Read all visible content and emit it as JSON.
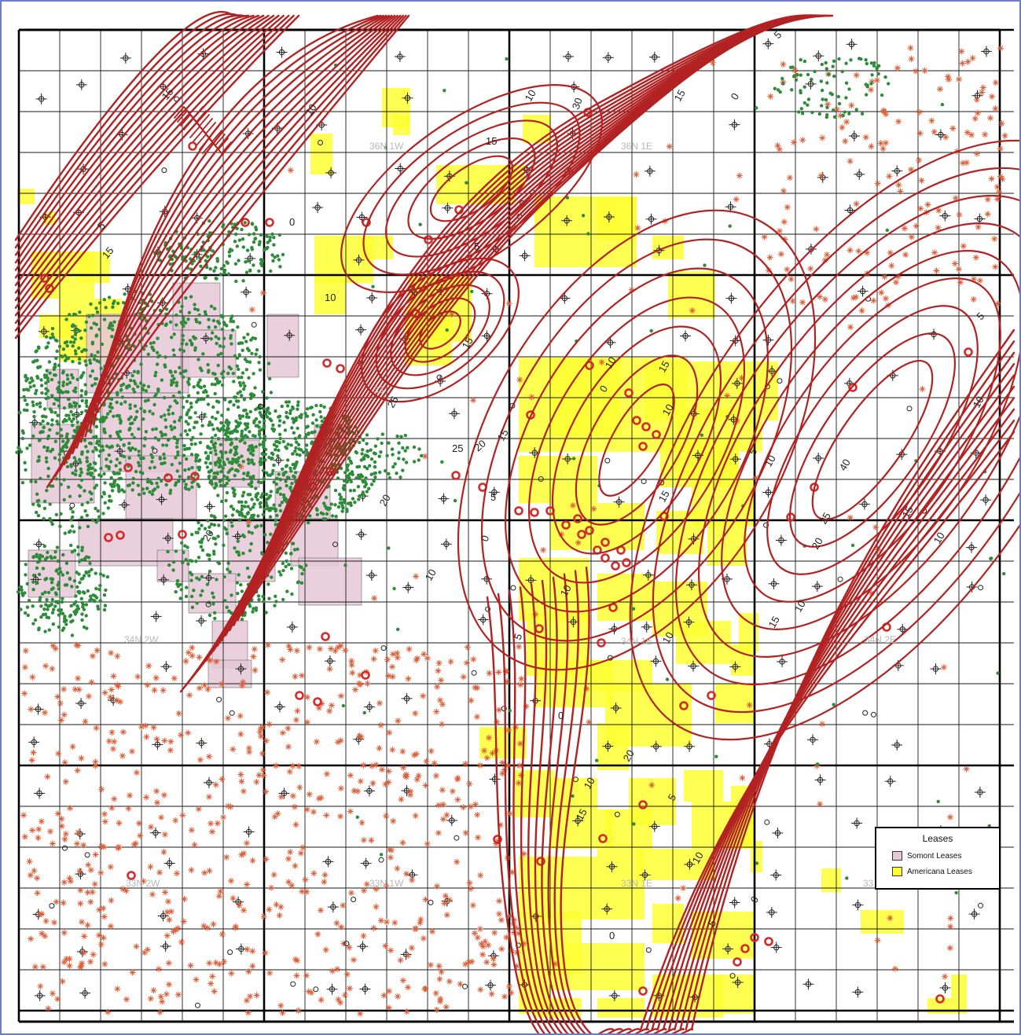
{
  "colors": {
    "contour": "#b22222",
    "grid_section": "#1a1a1a",
    "grid_township": "#000000",
    "americana_fill": "#ffff33",
    "somont_fill": "#e6c8d6",
    "well_green": "#2e8b3a",
    "well_red_star": "#d9603a",
    "well_red_circle": "#d42a2a",
    "well_black": "#222222",
    "frame_border": "#6b7fc4"
  },
  "township_labels": [
    "36N 1W",
    "36N 1E",
    "33",
    "34N 1E",
    "34N 2E",
    "34N 2W",
    "33N 1W",
    "33N 1E",
    "33N 2W",
    "33"
  ],
  "contour_labels": [
    "0",
    "5",
    "10",
    "15",
    "20",
    "25",
    "30",
    "40"
  ],
  "legend": {
    "title": "Leases",
    "items": [
      {
        "label": "Somont Leases",
        "color": "#e6c8d6"
      },
      {
        "label": "Americana Leases",
        "color": "#ffff33"
      }
    ]
  },
  "icons": {
    "dry_hole": "dry-hole-symbol-icon",
    "gas_well": "gas-well-star-icon",
    "oil_well": "oil-well-dot-icon",
    "location": "location-circle-icon"
  }
}
